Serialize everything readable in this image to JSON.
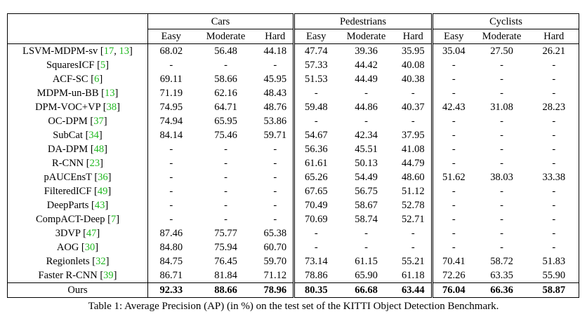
{
  "table": {
    "groups": [
      "Cars",
      "Pedestrians",
      "Cyclists"
    ],
    "subheaders": [
      "Easy",
      "Moderate",
      "Hard"
    ],
    "rows": [
      {
        "method": "LSVM-MDPM-sv ",
        "refs": [
          "17",
          "13"
        ],
        "values": [
          "68.02",
          "56.48",
          "44.18",
          "47.74",
          "39.36",
          "35.95",
          "35.04",
          "27.50",
          "26.21"
        ]
      },
      {
        "method": "SquaresICF ",
        "refs": [
          "5"
        ],
        "values": [
          "-",
          "-",
          "-",
          "57.33",
          "44.42",
          "40.08",
          "-",
          "-",
          "-"
        ]
      },
      {
        "method": "ACF-SC ",
        "refs": [
          "6"
        ],
        "values": [
          "69.11",
          "58.66",
          "45.95",
          "51.53",
          "44.49",
          "40.38",
          "-",
          "-",
          "-"
        ]
      },
      {
        "method": "MDPM-un-BB ",
        "refs": [
          "13"
        ],
        "values": [
          "71.19",
          "62.16",
          "48.43",
          "-",
          "-",
          "-",
          "-",
          "-",
          "-"
        ]
      },
      {
        "method": "DPM-VOC+VP ",
        "refs": [
          "38"
        ],
        "values": [
          "74.95",
          "64.71",
          "48.76",
          "59.48",
          "44.86",
          "40.37",
          "42.43",
          "31.08",
          "28.23"
        ]
      },
      {
        "method": "OC-DPM ",
        "refs": [
          "37"
        ],
        "values": [
          "74.94",
          "65.95",
          "53.86",
          "-",
          "-",
          "-",
          "-",
          "-",
          "-"
        ]
      },
      {
        "method": "SubCat ",
        "refs": [
          "34"
        ],
        "values": [
          "84.14",
          "75.46",
          "59.71",
          "54.67",
          "42.34",
          "37.95",
          "-",
          "-",
          "-"
        ]
      },
      {
        "method": "DA-DPM ",
        "refs": [
          "48"
        ],
        "values": [
          "-",
          "-",
          "-",
          "56.36",
          "45.51",
          "41.08",
          "-",
          "-",
          "-"
        ]
      },
      {
        "method": "R-CNN ",
        "refs": [
          "23"
        ],
        "values": [
          "-",
          "-",
          "-",
          "61.61",
          "50.13",
          "44.79",
          "-",
          "-",
          "-"
        ]
      },
      {
        "method": "pAUCEnsT ",
        "refs": [
          "36"
        ],
        "values": [
          "-",
          "-",
          "-",
          "65.26",
          "54.49",
          "48.60",
          "51.62",
          "38.03",
          "33.38"
        ]
      },
      {
        "method": "FilteredICF ",
        "refs": [
          "49"
        ],
        "values": [
          "-",
          "-",
          "-",
          "67.65",
          "56.75",
          "51.12",
          "-",
          "-",
          "-"
        ]
      },
      {
        "method": "DeepParts ",
        "refs": [
          "43"
        ],
        "values": [
          "-",
          "-",
          "-",
          "70.49",
          "58.67",
          "52.78",
          "-",
          "-",
          "-"
        ]
      },
      {
        "method": "CompACT-Deep ",
        "refs": [
          "7"
        ],
        "values": [
          "-",
          "-",
          "-",
          "70.69",
          "58.74",
          "52.71",
          "-",
          "-",
          "-"
        ]
      },
      {
        "method": "3DVP ",
        "refs": [
          "47"
        ],
        "values": [
          "87.46",
          "75.77",
          "65.38",
          "-",
          "-",
          "-",
          "-",
          "-",
          "-"
        ]
      },
      {
        "method": "AOG ",
        "refs": [
          "30"
        ],
        "values": [
          "84.80",
          "75.94",
          "60.70",
          "-",
          "-",
          "-",
          "-",
          "-",
          "-"
        ]
      },
      {
        "method": "Regionlets ",
        "refs": [
          "32"
        ],
        "values": [
          "84.75",
          "76.45",
          "59.70",
          "73.14",
          "61.15",
          "55.21",
          "70.41",
          "58.72",
          "51.83"
        ]
      },
      {
        "method": "Faster R-CNN ",
        "refs": [
          "39"
        ],
        "values": [
          "86.71",
          "81.84",
          "71.12",
          "78.86",
          "65.90",
          "61.18",
          "72.26",
          "63.35",
          "55.90"
        ]
      },
      {
        "method": "Ours",
        "refs": [],
        "values": [
          "92.33",
          "88.66",
          "78.96",
          "80.35",
          "66.68",
          "63.44",
          "76.04",
          "66.36",
          "58.87"
        ]
      }
    ]
  },
  "caption": "Table 1: Average Precision (AP) (in %) on the test set of the KITTI Object Detection Benchmark."
}
